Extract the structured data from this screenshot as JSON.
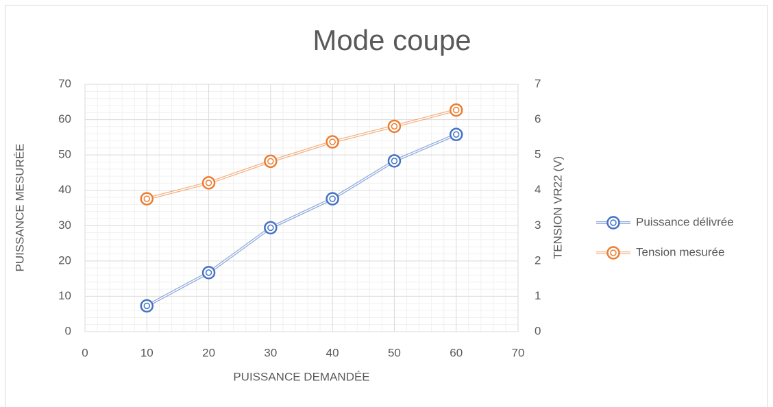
{
  "chart_data": {
    "type": "line",
    "title": "Mode coupe",
    "x_label": "PUISSANCE DEMANDÉE",
    "y_label": "PUISSANCE MESURÉE",
    "y2_label": "TENSION VR22 (V)",
    "x": [
      10,
      20,
      30,
      40,
      50,
      60
    ],
    "series": [
      {
        "name": "Puissance délivrée",
        "color": "#4472c4",
        "values": [
          7.3,
          16.7,
          29.4,
          37.6,
          48.3,
          55.8
        ]
      },
      {
        "name": "Tension mesurée",
        "color": "#ed7d31",
        "axis": "y2",
        "values": [
          3.76,
          4.21,
          4.82,
          5.37,
          5.81,
          6.27
        ]
      }
    ],
    "xlim": [
      0,
      70
    ],
    "xticks": [
      0,
      10,
      20,
      30,
      40,
      50,
      60,
      70
    ],
    "ylim": [
      0,
      70
    ],
    "yticks": [
      0,
      10,
      20,
      30,
      40,
      50,
      60,
      70
    ],
    "y2lim": [
      0,
      7
    ],
    "y2ticks": [
      0,
      1,
      2,
      3,
      4,
      5,
      6,
      7
    ],
    "grid": true,
    "minor_grid": true,
    "legend": "right"
  }
}
